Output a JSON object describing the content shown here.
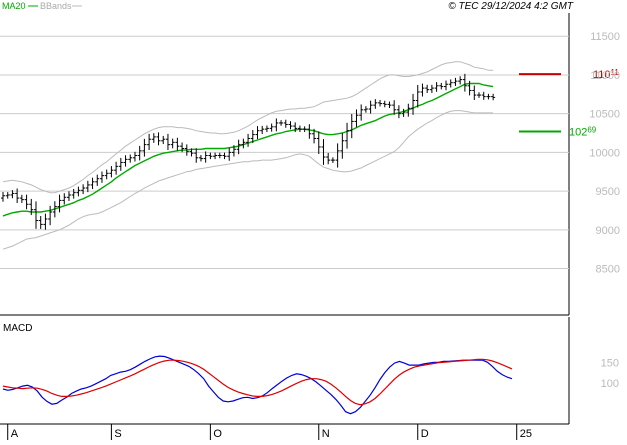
{
  "legend": {
    "ma_label": "MA20",
    "bands_label": "BBands"
  },
  "copyright": "© TEC 29/12/2024 4:2 GMT",
  "colors": {
    "ma": "#00aa00",
    "bands": "#bbbbbb",
    "candles": "#000000",
    "resistance": "#cc0000",
    "support": "#00aa00",
    "macd_line": "#0000dd",
    "signal_line": "#dd0000"
  },
  "chart_data": [
    {
      "type": "line",
      "title": "",
      "y_axis_side": "right",
      "ylim": [
        7900,
        11800
      ],
      "yticks": [
        {
          "value": 8500,
          "label": "8500"
        },
        {
          "value": 9000,
          "label": "9000"
        },
        {
          "value": 9500,
          "label": "9500"
        },
        {
          "value": 10000,
          "label": "10000"
        },
        {
          "value": 10500,
          "label": "10500"
        },
        {
          "value": 11000,
          "label": "11000"
        },
        {
          "value": 11500,
          "label": "11500"
        }
      ],
      "xticks": [
        {
          "index": 1,
          "label": "A"
        },
        {
          "index": 23,
          "label": "S"
        },
        {
          "index": 44,
          "label": "O"
        },
        {
          "index": 67,
          "label": "N"
        },
        {
          "index": 88,
          "label": "D"
        },
        {
          "index": 109,
          "label": "25"
        }
      ],
      "num_periods": 109,
      "close": [
        9440,
        9450,
        9470,
        9410,
        9390,
        9330,
        9260,
        9120,
        9070,
        9140,
        9230,
        9300,
        9380,
        9420,
        9450,
        9480,
        9510,
        9540,
        9580,
        9620,
        9660,
        9700,
        9730,
        9770,
        9820,
        9870,
        9910,
        9930,
        9960,
        10020,
        10100,
        10170,
        10200,
        10150,
        10170,
        10100,
        10130,
        10080,
        10050,
        10010,
        9990,
        9930,
        9920,
        9960,
        9950,
        9960,
        9960,
        9950,
        10000,
        10040,
        10100,
        10130,
        10180,
        10230,
        10280,
        10300,
        10310,
        10330,
        10380,
        10380,
        10360,
        10340,
        10310,
        10300,
        10300,
        10240,
        10180,
        10070,
        9940,
        9900,
        9900,
        10020,
        10150,
        10280,
        10400,
        10480,
        10550,
        10560,
        10610,
        10640,
        10630,
        10620,
        10610,
        10550,
        10500,
        10520,
        10570,
        10670,
        10780,
        10830,
        10810,
        10830,
        10860,
        10850,
        10880,
        10900,
        10920,
        10940,
        10860,
        10800,
        10740,
        10740,
        10720,
        10720,
        10710
      ],
      "series": [
        {
          "values": [
            9180,
            9200,
            9220,
            9230,
            9240,
            9240,
            9230,
            9230,
            9230,
            9240,
            9250,
            9270,
            9290,
            9310,
            9330,
            9350,
            9380,
            9400,
            9430,
            9460,
            9500,
            9540,
            9580,
            9620,
            9670,
            9710,
            9750,
            9790,
            9830,
            9860,
            9890,
            9920,
            9950,
            9970,
            9990,
            10000,
            10010,
            10020,
            10030,
            10030,
            10040,
            10040,
            10040,
            10050,
            10050,
            10050,
            10050,
            10050,
            10060,
            10070,
            10080,
            10100,
            10120,
            10140,
            10160,
            10180,
            10200,
            10220,
            10240,
            10250,
            10270,
            10280,
            10290,
            10300,
            10300,
            10290,
            10280,
            10260,
            10240,
            10230,
            10230,
            10240,
            10250,
            10270,
            10290,
            10320,
            10350,
            10370,
            10390,
            10410,
            10440,
            10470,
            10490,
            10500,
            10510,
            10530,
            10550,
            10570,
            10600,
            10620,
            10650,
            10670,
            10700,
            10730,
            10760,
            10790,
            10820,
            10850,
            10880,
            10890,
            10890,
            10890,
            10870,
            10860,
            10850
          ]
        },
        {
          "values": [
            9620,
            9630,
            9640,
            9630,
            9620,
            9600,
            9580,
            9550,
            9520,
            9500,
            9480,
            9480,
            9500,
            9520,
            9540,
            9570,
            9610,
            9650,
            9700,
            9740,
            9790,
            9840,
            9880,
            9930,
            9980,
            10030,
            10080,
            10120,
            10160,
            10200,
            10240,
            10270,
            10300,
            10320,
            10330,
            10330,
            10330,
            10320,
            10320,
            10310,
            10300,
            10280,
            10270,
            10260,
            10250,
            10250,
            10240,
            10240,
            10250,
            10260,
            10280,
            10310,
            10340,
            10380,
            10420,
            10450,
            10480,
            10510,
            10530,
            10540,
            10550,
            10560,
            10560,
            10570,
            10570,
            10580,
            10590,
            10620,
            10650,
            10660,
            10670,
            10680,
            10690,
            10700,
            10720,
            10750,
            10790,
            10830,
            10870,
            10910,
            10950,
            10980,
            11000,
            11000,
            10990,
            10980,
            10980,
            10990,
            11000,
            11020,
            11040,
            11070,
            11100,
            11130,
            11150,
            11160,
            11170,
            11170,
            11150,
            11130,
            11100,
            11090,
            11080,
            11060,
            11060
          ]
        },
        {
          "values": [
            8750,
            8770,
            8790,
            8820,
            8850,
            8880,
            8890,
            8900,
            8920,
            8940,
            8960,
            8980,
            9000,
            9030,
            9060,
            9100,
            9140,
            9170,
            9190,
            9200,
            9210,
            9230,
            9260,
            9290,
            9320,
            9350,
            9390,
            9430,
            9470,
            9500,
            9540,
            9570,
            9600,
            9630,
            9650,
            9670,
            9690,
            9710,
            9730,
            9750,
            9760,
            9780,
            9790,
            9800,
            9810,
            9820,
            9830,
            9840,
            9850,
            9860,
            9870,
            9880,
            9880,
            9890,
            9890,
            9900,
            9900,
            9900,
            9910,
            9920,
            9930,
            9950,
            9970,
            9980,
            9970,
            9950,
            9900,
            9850,
            9810,
            9790,
            9770,
            9760,
            9750,
            9750,
            9760,
            9780,
            9800,
            9830,
            9860,
            9890,
            9920,
            9950,
            9980,
            10010,
            10060,
            10130,
            10200,
            10250,
            10300,
            10340,
            10380,
            10410,
            10450,
            10480,
            10510,
            10530,
            10540,
            10540,
            10530,
            10520,
            10510,
            10510,
            10510,
            10510,
            10510
          ]
        }
      ],
      "annotations": [
        {
          "type": "resistance",
          "value": 11011,
          "label_main": "110",
          "label_sup": "11"
        },
        {
          "type": "support",
          "value": 10269,
          "label_main": "102",
          "label_sup": "69"
        }
      ]
    },
    {
      "type": "line",
      "title": "MACD",
      "y_axis_side": "right",
      "ylim": [
        0,
        260
      ],
      "yticks": [
        {
          "value": 100,
          "label": "100"
        },
        {
          "value": 150,
          "label": "150"
        }
      ],
      "series": [
        {
          "values": [
            85,
            82,
            84,
            88,
            92,
            94,
            90,
            80,
            65,
            55,
            48,
            50,
            58,
            65,
            74,
            80,
            85,
            88,
            92,
            98,
            104,
            110,
            118,
            122,
            126,
            128,
            132,
            138,
            145,
            152,
            158,
            163,
            165,
            164,
            160,
            155,
            150,
            145,
            140,
            132,
            122,
            110,
            92,
            78,
            65,
            56,
            54,
            56,
            60,
            64,
            65,
            62,
            64,
            68,
            76,
            86,
            95,
            104,
            112,
            118,
            122,
            120,
            116,
            110,
            102,
            92,
            82,
            72,
            60,
            46,
            30,
            25,
            30,
            40,
            55,
            70,
            88,
            108,
            125,
            138,
            148,
            152,
            148,
            143,
            143,
            143,
            146,
            148,
            150,
            150,
            152,
            152,
            153,
            154,
            155,
            155,
            155,
            155,
            155,
            150,
            140,
            128,
            120,
            114,
            110
          ]
        },
        {
          "values": [
            92,
            90,
            88,
            87,
            86,
            87,
            88,
            87,
            84,
            80,
            74,
            70,
            67,
            67,
            68,
            70,
            73,
            76,
            80,
            84,
            88,
            92,
            97,
            102,
            107,
            112,
            117,
            122,
            128,
            134,
            140,
            145,
            150,
            153,
            155,
            155,
            154,
            152,
            149,
            145,
            140,
            133,
            124,
            115,
            106,
            97,
            89,
            83,
            78,
            74,
            71,
            68,
            67,
            67,
            69,
            72,
            76,
            81,
            87,
            93,
            99,
            104,
            108,
            110,
            110,
            108,
            104,
            97,
            88,
            78,
            67,
            57,
            50,
            47,
            49,
            54,
            62,
            73,
            85,
            97,
            109,
            119,
            127,
            133,
            138,
            141,
            143,
            145,
            147,
            149,
            150,
            151,
            152,
            153,
            154,
            155,
            156,
            157,
            157,
            156,
            153,
            149,
            144,
            139,
            134
          ]
        }
      ]
    }
  ]
}
